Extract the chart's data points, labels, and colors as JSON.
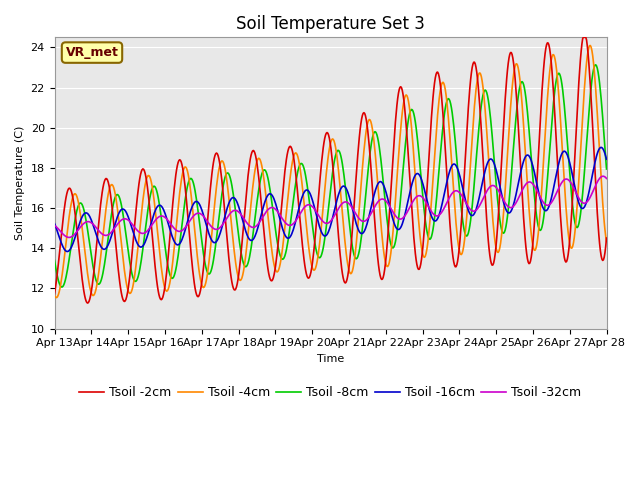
{
  "title": "Soil Temperature Set 3",
  "xlabel": "Time",
  "ylabel": "Soil Temperature (C)",
  "ylim": [
    10,
    24.5
  ],
  "series_colors": [
    "#dd0000",
    "#ff8800",
    "#00cc00",
    "#0000cc",
    "#cc00cc"
  ],
  "series_labels": [
    "Tsoil -2cm",
    "Tsoil -4cm",
    "Tsoil -8cm",
    "Tsoil -16cm",
    "Tsoil -32cm"
  ],
  "x_tick_labels": [
    "Apr 13",
    "Apr 14",
    "Apr 15",
    "Apr 16",
    "Apr 17",
    "Apr 18",
    "Apr 19",
    "Apr 20",
    "Apr 21",
    "Apr 22",
    "Apr 23",
    "Apr 24",
    "Apr 25",
    "Apr 26",
    "Apr 27",
    "Apr 28"
  ],
  "x_tick_positions": [
    0,
    1,
    2,
    3,
    4,
    5,
    6,
    7,
    8,
    9,
    10,
    11,
    12,
    13,
    14,
    15
  ],
  "annotation_text": "VR_met",
  "plot_bg_color": "#e8e8e8",
  "linewidth": 1.2,
  "legend_fontsize": 9,
  "title_fontsize": 12,
  "axis_fontsize": 8
}
